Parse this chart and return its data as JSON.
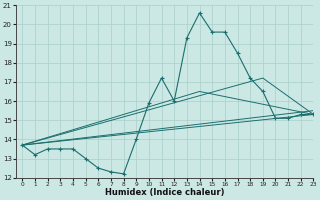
{
  "xlabel": "Humidex (Indice chaleur)",
  "xlim": [
    -0.5,
    23
  ],
  "ylim": [
    12,
    21
  ],
  "yticks": [
    12,
    13,
    14,
    15,
    16,
    17,
    18,
    19,
    20,
    21
  ],
  "xticks": [
    0,
    1,
    2,
    3,
    4,
    5,
    6,
    7,
    8,
    9,
    10,
    11,
    12,
    13,
    14,
    15,
    16,
    17,
    18,
    19,
    20,
    21,
    22,
    23
  ],
  "bg_color": "#cce8e4",
  "grid_color": "#aacfca",
  "line_color": "#1a6e6e",
  "main_series": {
    "x": [
      0,
      1,
      2,
      3,
      4,
      5,
      6,
      7,
      8,
      9,
      10,
      11,
      12,
      13,
      14,
      15,
      16,
      17,
      18,
      19,
      20,
      21,
      22,
      23
    ],
    "y": [
      13.7,
      13.2,
      13.5,
      13.5,
      13.5,
      13.0,
      12.5,
      12.3,
      12.2,
      14.0,
      15.9,
      17.2,
      16.0,
      19.3,
      20.6,
      19.6,
      19.6,
      18.5,
      17.2,
      16.5,
      15.1,
      15.1,
      15.3,
      15.3
    ]
  },
  "ref_lines": [
    {
      "x": [
        0,
        23
      ],
      "y": [
        13.7,
        15.3
      ]
    },
    {
      "x": [
        0,
        23
      ],
      "y": [
        13.7,
        15.5
      ]
    },
    {
      "x": [
        0,
        19,
        23
      ],
      "y": [
        13.7,
        17.2,
        15.3
      ]
    },
    {
      "x": [
        0,
        14,
        23
      ],
      "y": [
        13.7,
        16.5,
        15.3
      ]
    }
  ]
}
